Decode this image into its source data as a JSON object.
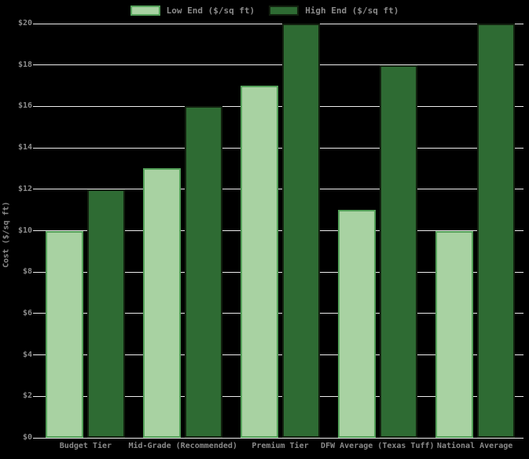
{
  "chart_data": {
    "type": "bar",
    "categories": [
      "Budget Tier",
      "Mid-Grade (Recommended)",
      "Premium Tier",
      "DFW Average (Texas Tuff)",
      "National Average"
    ],
    "series": [
      {
        "name": "Low End ($/sq ft)",
        "values": [
          10,
          13,
          17,
          11,
          10
        ],
        "fill_color": "#a8d2a2",
        "edge_color": "#54a159"
      },
      {
        "name": "High End ($/sq ft)",
        "values": [
          12,
          16,
          20,
          18,
          20
        ],
        "fill_color": "#2e6b33",
        "edge_color": "#12200f"
      }
    ],
    "title": "",
    "xlabel": "",
    "ylabel": "Cost ($/sq ft)",
    "ylim": [
      0,
      20
    ],
    "ytick_step": 2,
    "ytick_labels": [
      "$0",
      "$2",
      "$4",
      "$6",
      "$8",
      "$10",
      "$12",
      "$14",
      "$16",
      "$18",
      "$20"
    ],
    "grid": true,
    "legend_position": "top-center",
    "colors": {
      "background": "#000000",
      "grid_color": "#ececec",
      "text_color": "#8a8a8a"
    }
  }
}
